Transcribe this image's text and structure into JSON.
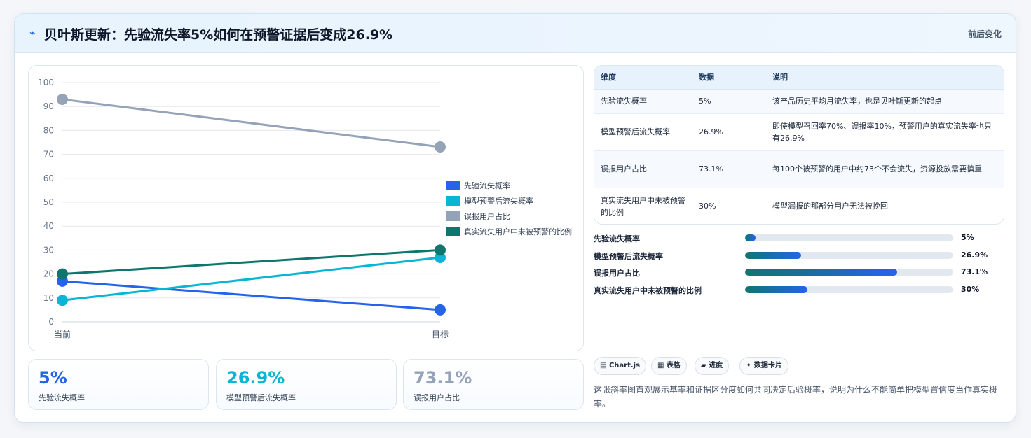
{
  "header": {
    "icon": "lightning-icon",
    "title": "贝叶斯更新：先验流失率5%如何在预警证据后变成26.9%",
    "subtitle": "前后变化"
  },
  "chart_data": {
    "type": "line",
    "x": [
      "当前",
      "目标"
    ],
    "ylim": [
      0,
      100
    ],
    "yticks": [
      0,
      10,
      20,
      30,
      40,
      50,
      60,
      70,
      80,
      90,
      100
    ],
    "grid": true,
    "legend": "right",
    "series": [
      {
        "name": "先验流失概率",
        "values": [
          17,
          5
        ],
        "color": "#2563eb"
      },
      {
        "name": "模型预警后流失概率",
        "values": [
          9,
          26.9
        ],
        "color": "#06b6d4"
      },
      {
        "name": "误报用户占比",
        "values": [
          93,
          73.1
        ],
        "color": "#94a3b8"
      },
      {
        "name": "真实流失用户中未被预警的比例",
        "values": [
          20,
          30
        ],
        "color": "#0f766e"
      }
    ]
  },
  "kpis": [
    {
      "value": "5%",
      "label": "先验流失概率",
      "color": "#2563eb"
    },
    {
      "value": "26.9%",
      "label": "模型预警后流失概率",
      "color": "#06b6d4"
    },
    {
      "value": "73.1%",
      "label": "误报用户占比",
      "color": "#94a3b8"
    }
  ],
  "table": {
    "headers": [
      "维度",
      "数据",
      "说明"
    ],
    "rows": [
      [
        "先验流失概率",
        "5%",
        "该产品历史平均月流失率，也是贝叶斯更新的起点"
      ],
      [
        "模型预警后流失概率",
        "26.9%",
        "即使模型召回率70%、误报率10%，预警用户的真实流失率也只有26.9%"
      ],
      [
        "误报用户占比",
        "73.1%",
        "每100个被预警的用户中约73个不会流失，资源投放需要慎重"
      ],
      [
        "真实流失用户中未被预警的比例",
        "30%",
        "模型漏报的那部分用户无法被挽回"
      ]
    ]
  },
  "progress": [
    {
      "label": "先验流失概率",
      "value": "5%",
      "fraction": 0.05
    },
    {
      "label": "模型预警后流失概率",
      "value": "26.9%",
      "fraction": 0.269
    },
    {
      "label": "误报用户占比",
      "value": "73.1%",
      "fraction": 0.731
    },
    {
      "label": "真实流失用户中未被预警的比例",
      "value": "30%",
      "fraction": 0.3
    }
  ],
  "tags": [
    {
      "icon": "chart-icon",
      "glyph": "▤",
      "label": "Chart.js"
    },
    {
      "icon": "table-icon",
      "glyph": "▦",
      "label": "表格"
    },
    {
      "icon": "progress-icon",
      "glyph": "▰",
      "label": "进度"
    },
    {
      "icon": "sparkle-icon",
      "glyph": "✦",
      "label": "数据卡片"
    }
  ],
  "note": "这张斜率图直观展示基率和证据区分度如何共同决定后验概率，说明为什么不能简单把模型置信度当作真实概率。"
}
